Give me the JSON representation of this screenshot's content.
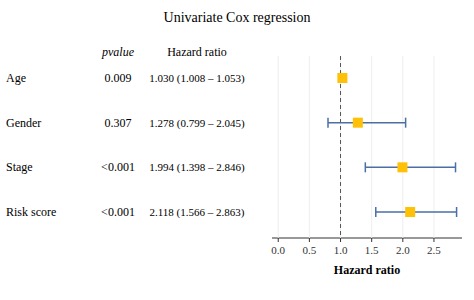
{
  "chart_data": {
    "type": "forest",
    "title": "Univariate Cox regression",
    "xlabel": "Hazard ratio",
    "column_headers": [
      "pvalue",
      "Hazard ratio"
    ],
    "categories": [
      "Age",
      "Gender",
      "Stage",
      "Risk score"
    ],
    "pvalues": [
      "0.009",
      "0.307",
      "<0.001",
      "<0.001"
    ],
    "hr_texts": [
      "1.030 (1.008 – 1.053)",
      "1.278 (0.799 – 2.045)",
      "1.994 (1.398 – 2.846)",
      "2.118 (1.566 – 2.863)"
    ],
    "values": [
      1.03,
      1.278,
      1.994,
      2.118
    ],
    "lower": [
      1.008,
      0.799,
      1.398,
      1.566
    ],
    "upper": [
      1.053,
      2.045,
      2.846,
      2.863
    ],
    "reference_line": 1.0,
    "xlim": [
      -0.1,
      2.95
    ],
    "xticks": [
      {
        "value": 0.0,
        "label": "0.0"
      },
      0.5,
      {
        "value": 1.0,
        "label": "1.0"
      },
      1.5,
      {
        "value": 2.0,
        "label": "2.0"
      },
      2.5
    ],
    "color": "#FFC107",
    "error_color": "#4B6FA5",
    "marker": "square"
  }
}
